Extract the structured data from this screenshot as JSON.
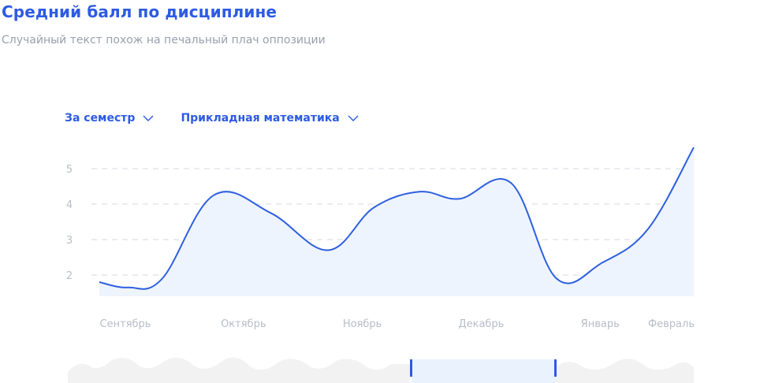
{
  "header": {
    "title": "Средний балл по дисциплине",
    "subtitle": "Случайный текст похож на печальный плач оппозиции"
  },
  "filters": [
    {
      "label": "За семестр",
      "icon": "chevron-down-icon"
    },
    {
      "label": "Прикладная математика",
      "icon": "chevron-down-icon"
    }
  ],
  "colors": {
    "accent": "#2d5be3",
    "line": "#2e5fe0",
    "area": "#eef4fd",
    "grid": "#d6d9e0",
    "tick": "#b8bcc7",
    "navigator": "#f1f1f1"
  },
  "chart_data": {
    "type": "area",
    "categories": [
      "Сентябрь",
      "Октябрь",
      "Ноябрь",
      "Декабрь",
      "Январь",
      "Февраль"
    ],
    "yticks": [
      2,
      3,
      4,
      5
    ],
    "ylim": [
      1.4,
      5.6
    ],
    "grid": true,
    "smooth": true,
    "series": [
      {
        "x": [
          0,
          0.25,
          0.55,
          1.0,
          1.5,
          2.0,
          2.4,
          2.8,
          3.15,
          3.6,
          4.0,
          4.4,
          4.8,
          5.2
        ],
        "values": [
          1.8,
          1.65,
          1.9,
          4.25,
          3.75,
          2.7,
          3.9,
          4.35,
          4.15,
          4.6,
          1.9,
          2.35,
          3.3,
          5.6
        ]
      }
    ]
  }
}
